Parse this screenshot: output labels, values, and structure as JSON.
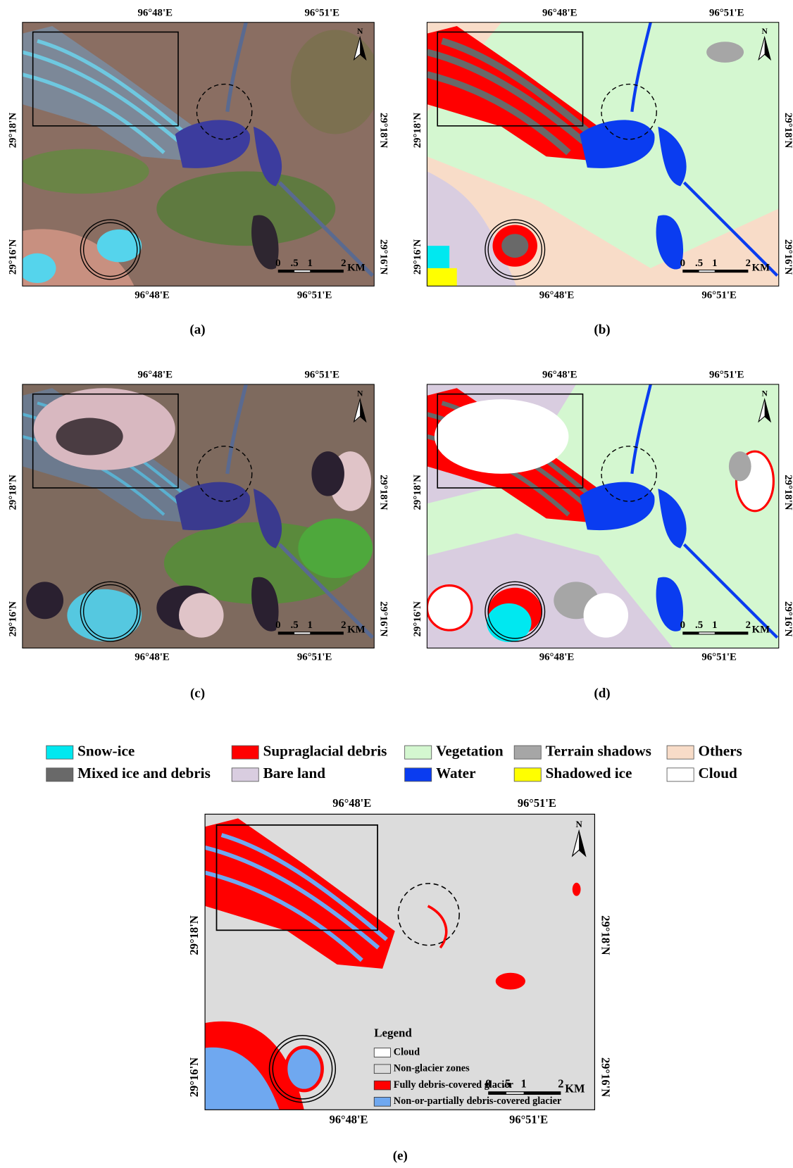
{
  "panels": [
    {
      "caption": "(a)"
    },
    {
      "caption": "(b)"
    },
    {
      "caption": "(c)"
    },
    {
      "caption": "(d)"
    },
    {
      "caption": "(e)"
    }
  ],
  "coordinates": {
    "lon": [
      "96°48'E",
      "96°51'E"
    ],
    "lat": [
      "29°18'N",
      "29°16'N"
    ]
  },
  "north": "N",
  "scale_bar": {
    "ticks": [
      "0",
      ".5",
      "1",
      "2"
    ],
    "unit": "KM"
  },
  "legend": [
    {
      "label": "Snow-ice",
      "color": "#00e8f0"
    },
    {
      "label": "Supraglacial debris",
      "color": "#ff0000"
    },
    {
      "label": "Vegetation",
      "color": "#d4f7d0"
    },
    {
      "label": "Terrain shadows",
      "color": "#a6a6a6"
    },
    {
      "label": "Others",
      "color": "#f8dcc8"
    },
    {
      "label": "Mixed ice and debris",
      "color": "#696969"
    },
    {
      "label": "Bare land",
      "color": "#d9cde0"
    },
    {
      "label": "Water",
      "color": "#0a3cf0"
    },
    {
      "label": "Shadowed ice",
      "color": "#ffff00"
    },
    {
      "label": "Cloud",
      "color": "#ffffff"
    }
  ],
  "panel_e_legend": {
    "title": "Legend",
    "items": [
      {
        "label": "Cloud",
        "color": "#ffffff"
      },
      {
        "label": "Non-glacier zones",
        "color": "#dcdcdc"
      },
      {
        "label": "Fully debris-covered glacier",
        "color": "#ff0000"
      },
      {
        "label": "Non-or-partially debris-covered glacier",
        "color": "#6fa8f0"
      }
    ]
  }
}
